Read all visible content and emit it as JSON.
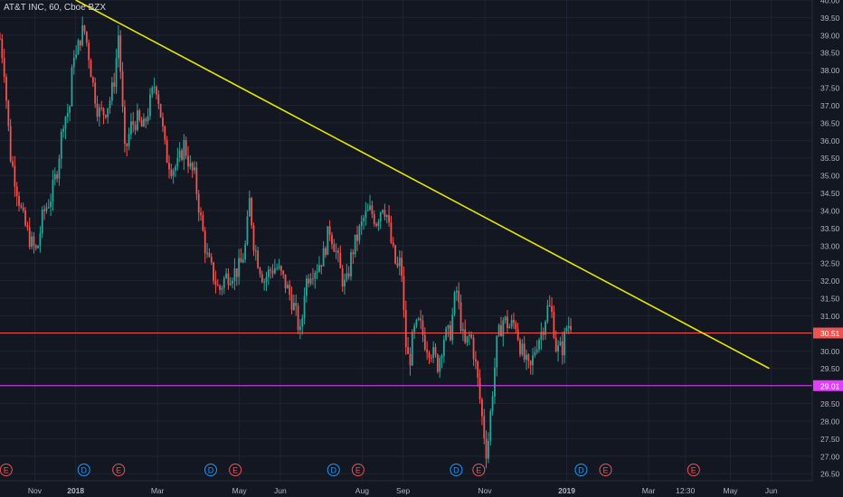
{
  "symbol_title": "AT&T INC, 60, Cboe BZX",
  "chart_data": {
    "type": "candlestick",
    "title": "AT&T INC, 60, Cboe BZX",
    "ylim": [
      26.3,
      40.0
    ],
    "x_range_months": [
      -1.85,
      18.0
    ],
    "y_ticks": [
      40.0,
      39.5,
      39.0,
      38.5,
      38.0,
      37.5,
      37.0,
      36.5,
      36.0,
      35.5,
      35.0,
      34.5,
      34.0,
      33.5,
      33.0,
      32.5,
      32.0,
      31.5,
      31.0,
      30.5,
      30.0,
      29.5,
      29.0,
      28.5,
      28.0,
      27.5,
      27.0,
      26.5
    ],
    "y_tick_labels": [
      "40.00",
      "39.50",
      "39.00",
      "38.50",
      "38.00",
      "37.50",
      "37.00",
      "36.50",
      "36.00",
      "35.50",
      "35.00",
      "34.50",
      "34.00",
      "33.50",
      "33.00",
      "32.50",
      "32.00",
      "31.50",
      "31.00",
      "30.50",
      "30.00",
      "29.50",
      "29.00",
      "28.50",
      "28.00",
      "27.50",
      "27.00",
      "26.50"
    ],
    "x_ticks": [
      {
        "label": "Nov",
        "m": -1.0
      },
      {
        "label": "2018",
        "m": 0.0,
        "bold": true
      },
      {
        "label": "Mar",
        "m": 2.0
      },
      {
        "label": "May",
        "m": 4.0
      },
      {
        "label": "Jun",
        "m": 5.0
      },
      {
        "label": "Aug",
        "m": 7.0
      },
      {
        "label": "Sep",
        "m": 8.0
      },
      {
        "label": "Nov",
        "m": 10.0
      },
      {
        "label": "2019",
        "m": 12.0,
        "bold": true
      },
      {
        "label": "Mar",
        "m": 14.0
      },
      {
        "label": "12:30",
        "m": 14.9
      },
      {
        "label": "May",
        "m": 16.0
      },
      {
        "label": "Jun",
        "m": 17.0
      }
    ],
    "price_path": [
      [
        -1.85,
        38.9
      ],
      [
        -1.75,
        38.1
      ],
      [
        -1.6,
        35.6
      ],
      [
        -1.45,
        34.7
      ],
      [
        -1.3,
        33.8
      ],
      [
        -1.1,
        33.1
      ],
      [
        -0.95,
        32.8
      ],
      [
        -0.8,
        33.9
      ],
      [
        -0.6,
        34.4
      ],
      [
        -0.45,
        35.2
      ],
      [
        -0.3,
        36.6
      ],
      [
        -0.15,
        36.9
      ],
      [
        0.0,
        38.3
      ],
      [
        -0.05,
        38.6
      ],
      [
        0.1,
        38.9
      ],
      [
        0.2,
        39.2
      ],
      [
        0.3,
        38.6
      ],
      [
        0.42,
        37.6
      ],
      [
        0.55,
        36.8
      ],
      [
        0.7,
        36.8
      ],
      [
        0.85,
        37.2
      ],
      [
        0.95,
        37.8
      ],
      [
        1.05,
        39.1
      ],
      [
        1.12,
        37.4
      ],
      [
        1.2,
        35.6
      ],
      [
        1.35,
        36.4
      ],
      [
        1.5,
        36.6
      ],
      [
        1.65,
        36.3
      ],
      [
        1.8,
        37.0
      ],
      [
        1.95,
        37.7
      ],
      [
        2.05,
        37.0
      ],
      [
        2.2,
        35.6
      ],
      [
        2.35,
        35.2
      ],
      [
        2.5,
        35.3
      ],
      [
        2.65,
        35.9
      ],
      [
        2.8,
        35.2
      ],
      [
        2.9,
        35.0
      ],
      [
        3.05,
        33.8
      ],
      [
        3.2,
        32.7
      ],
      [
        3.35,
        32.2
      ],
      [
        3.5,
        31.7
      ],
      [
        3.65,
        32.1
      ],
      [
        3.8,
        32.2
      ],
      [
        3.95,
        32.3
      ],
      [
        4.05,
        32.5
      ],
      [
        4.15,
        33.0
      ],
      [
        4.25,
        34.3
      ],
      [
        4.35,
        33.1
      ],
      [
        4.45,
        32.6
      ],
      [
        4.6,
        32.0
      ],
      [
        4.75,
        32.3
      ],
      [
        4.9,
        32.4
      ],
      [
        5.05,
        32.1
      ],
      [
        5.2,
        31.7
      ],
      [
        5.35,
        31.2
      ],
      [
        5.5,
        30.4
      ],
      [
        5.6,
        31.9
      ],
      [
        5.75,
        32.3
      ],
      [
        5.9,
        32.4
      ],
      [
        6.05,
        32.7
      ],
      [
        6.2,
        33.5
      ],
      [
        6.35,
        32.9
      ],
      [
        6.5,
        32.1
      ],
      [
        6.6,
        31.8
      ],
      [
        6.75,
        32.8
      ],
      [
        6.9,
        33.3
      ],
      [
        7.05,
        33.8
      ],
      [
        7.2,
        34.0
      ],
      [
        7.35,
        33.7
      ],
      [
        7.5,
        34.2
      ],
      [
        7.6,
        33.9
      ],
      [
        7.72,
        33.0
      ],
      [
        7.85,
        32.3
      ],
      [
        7.95,
        32.6
      ],
      [
        8.05,
        30.3
      ],
      [
        8.15,
        29.6
      ],
      [
        8.25,
        30.5
      ],
      [
        8.4,
        30.8
      ],
      [
        8.55,
        30.2
      ],
      [
        8.7,
        30.0
      ],
      [
        8.85,
        29.6
      ],
      [
        9.0,
        30.4
      ],
      [
        9.15,
        30.5
      ],
      [
        9.3,
        31.8
      ],
      [
        9.4,
        30.9
      ],
      [
        9.5,
        30.1
      ],
      [
        9.65,
        30.5
      ],
      [
        9.8,
        29.4
      ],
      [
        9.95,
        27.9
      ],
      [
        10.05,
        27.0
      ],
      [
        10.15,
        28.4
      ],
      [
        10.3,
        30.3
      ],
      [
        10.45,
        30.9
      ],
      [
        10.6,
        30.7
      ],
      [
        10.75,
        30.8
      ],
      [
        10.85,
        30.2
      ],
      [
        10.95,
        29.8
      ],
      [
        11.1,
        29.4
      ],
      [
        11.25,
        30.2
      ],
      [
        11.4,
        30.6
      ],
      [
        11.55,
        31.3
      ],
      [
        11.65,
        31.0
      ],
      [
        11.75,
        30.0
      ],
      [
        11.9,
        30.1
      ],
      [
        12.0,
        30.7
      ],
      [
        12.1,
        30.8
      ]
    ],
    "trendline": {
      "from": [
        0.0,
        40.0
      ],
      "to": [
        16.95,
        29.5
      ],
      "color": "#e6e600"
    },
    "horizontal_lines": [
      {
        "value": 30.51,
        "label": "30.51",
        "color": "#ef5350"
      },
      {
        "value": 29.01,
        "label": "29.01",
        "color": "#e040fb"
      }
    ],
    "events": [
      {
        "type": "E",
        "m": -1.7
      },
      {
        "type": "D",
        "m": 0.2
      },
      {
        "type": "E",
        "m": 1.05
      },
      {
        "type": "D",
        "m": 3.3
      },
      {
        "type": "E",
        "m": 3.9
      },
      {
        "type": "D",
        "m": 6.3
      },
      {
        "type": "E",
        "m": 6.9
      },
      {
        "type": "D",
        "m": 9.3
      },
      {
        "type": "E",
        "m": 9.85
      },
      {
        "type": "D",
        "m": 12.35
      },
      {
        "type": "E",
        "m": 12.95
      },
      {
        "type": "E",
        "m": 15.1
      }
    ],
    "grid": true,
    "colors": {
      "up": "#26a69a",
      "down": "#ef5350",
      "event_E": "#ef5350",
      "event_D": "#2196f3"
    }
  }
}
